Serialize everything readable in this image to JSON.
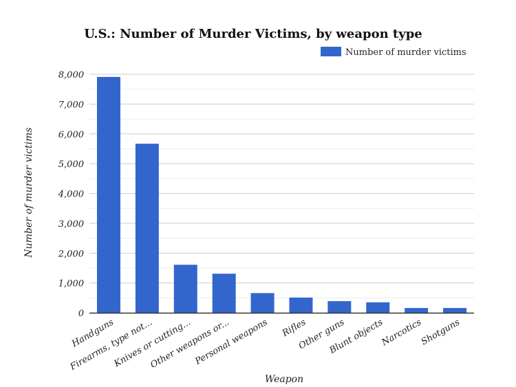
{
  "chart_data": {
    "type": "bar",
    "title": "U.S.: Number of Murder Victims, by weapon type",
    "xlabel": "Weapon",
    "ylabel": "Number of murder victims",
    "categories": [
      "Handguns",
      "Firearms, type not...",
      "Knives or cutting...",
      "Other weapons or...",
      "Personal weapons",
      "Rifles",
      "Other guns",
      "Blunt objects",
      "Narcotics",
      "Shotguns"
    ],
    "series": [
      {
        "name": "Number of murder victims",
        "values": [
          7910,
          5670,
          1610,
          1310,
          660,
          510,
          390,
          350,
          160,
          160
        ],
        "color": "#3366cc"
      }
    ],
    "ylim": [
      0,
      8000
    ],
    "yticks": [
      0,
      1000,
      2000,
      3000,
      4000,
      5000,
      6000,
      7000,
      8000
    ],
    "ytick_labels": [
      "0",
      "1,000",
      "2,000",
      "3,000",
      "4,000",
      "5,000",
      "6,000",
      "7,000",
      "8,000"
    ],
    "grid": true,
    "legend": "top-right"
  }
}
